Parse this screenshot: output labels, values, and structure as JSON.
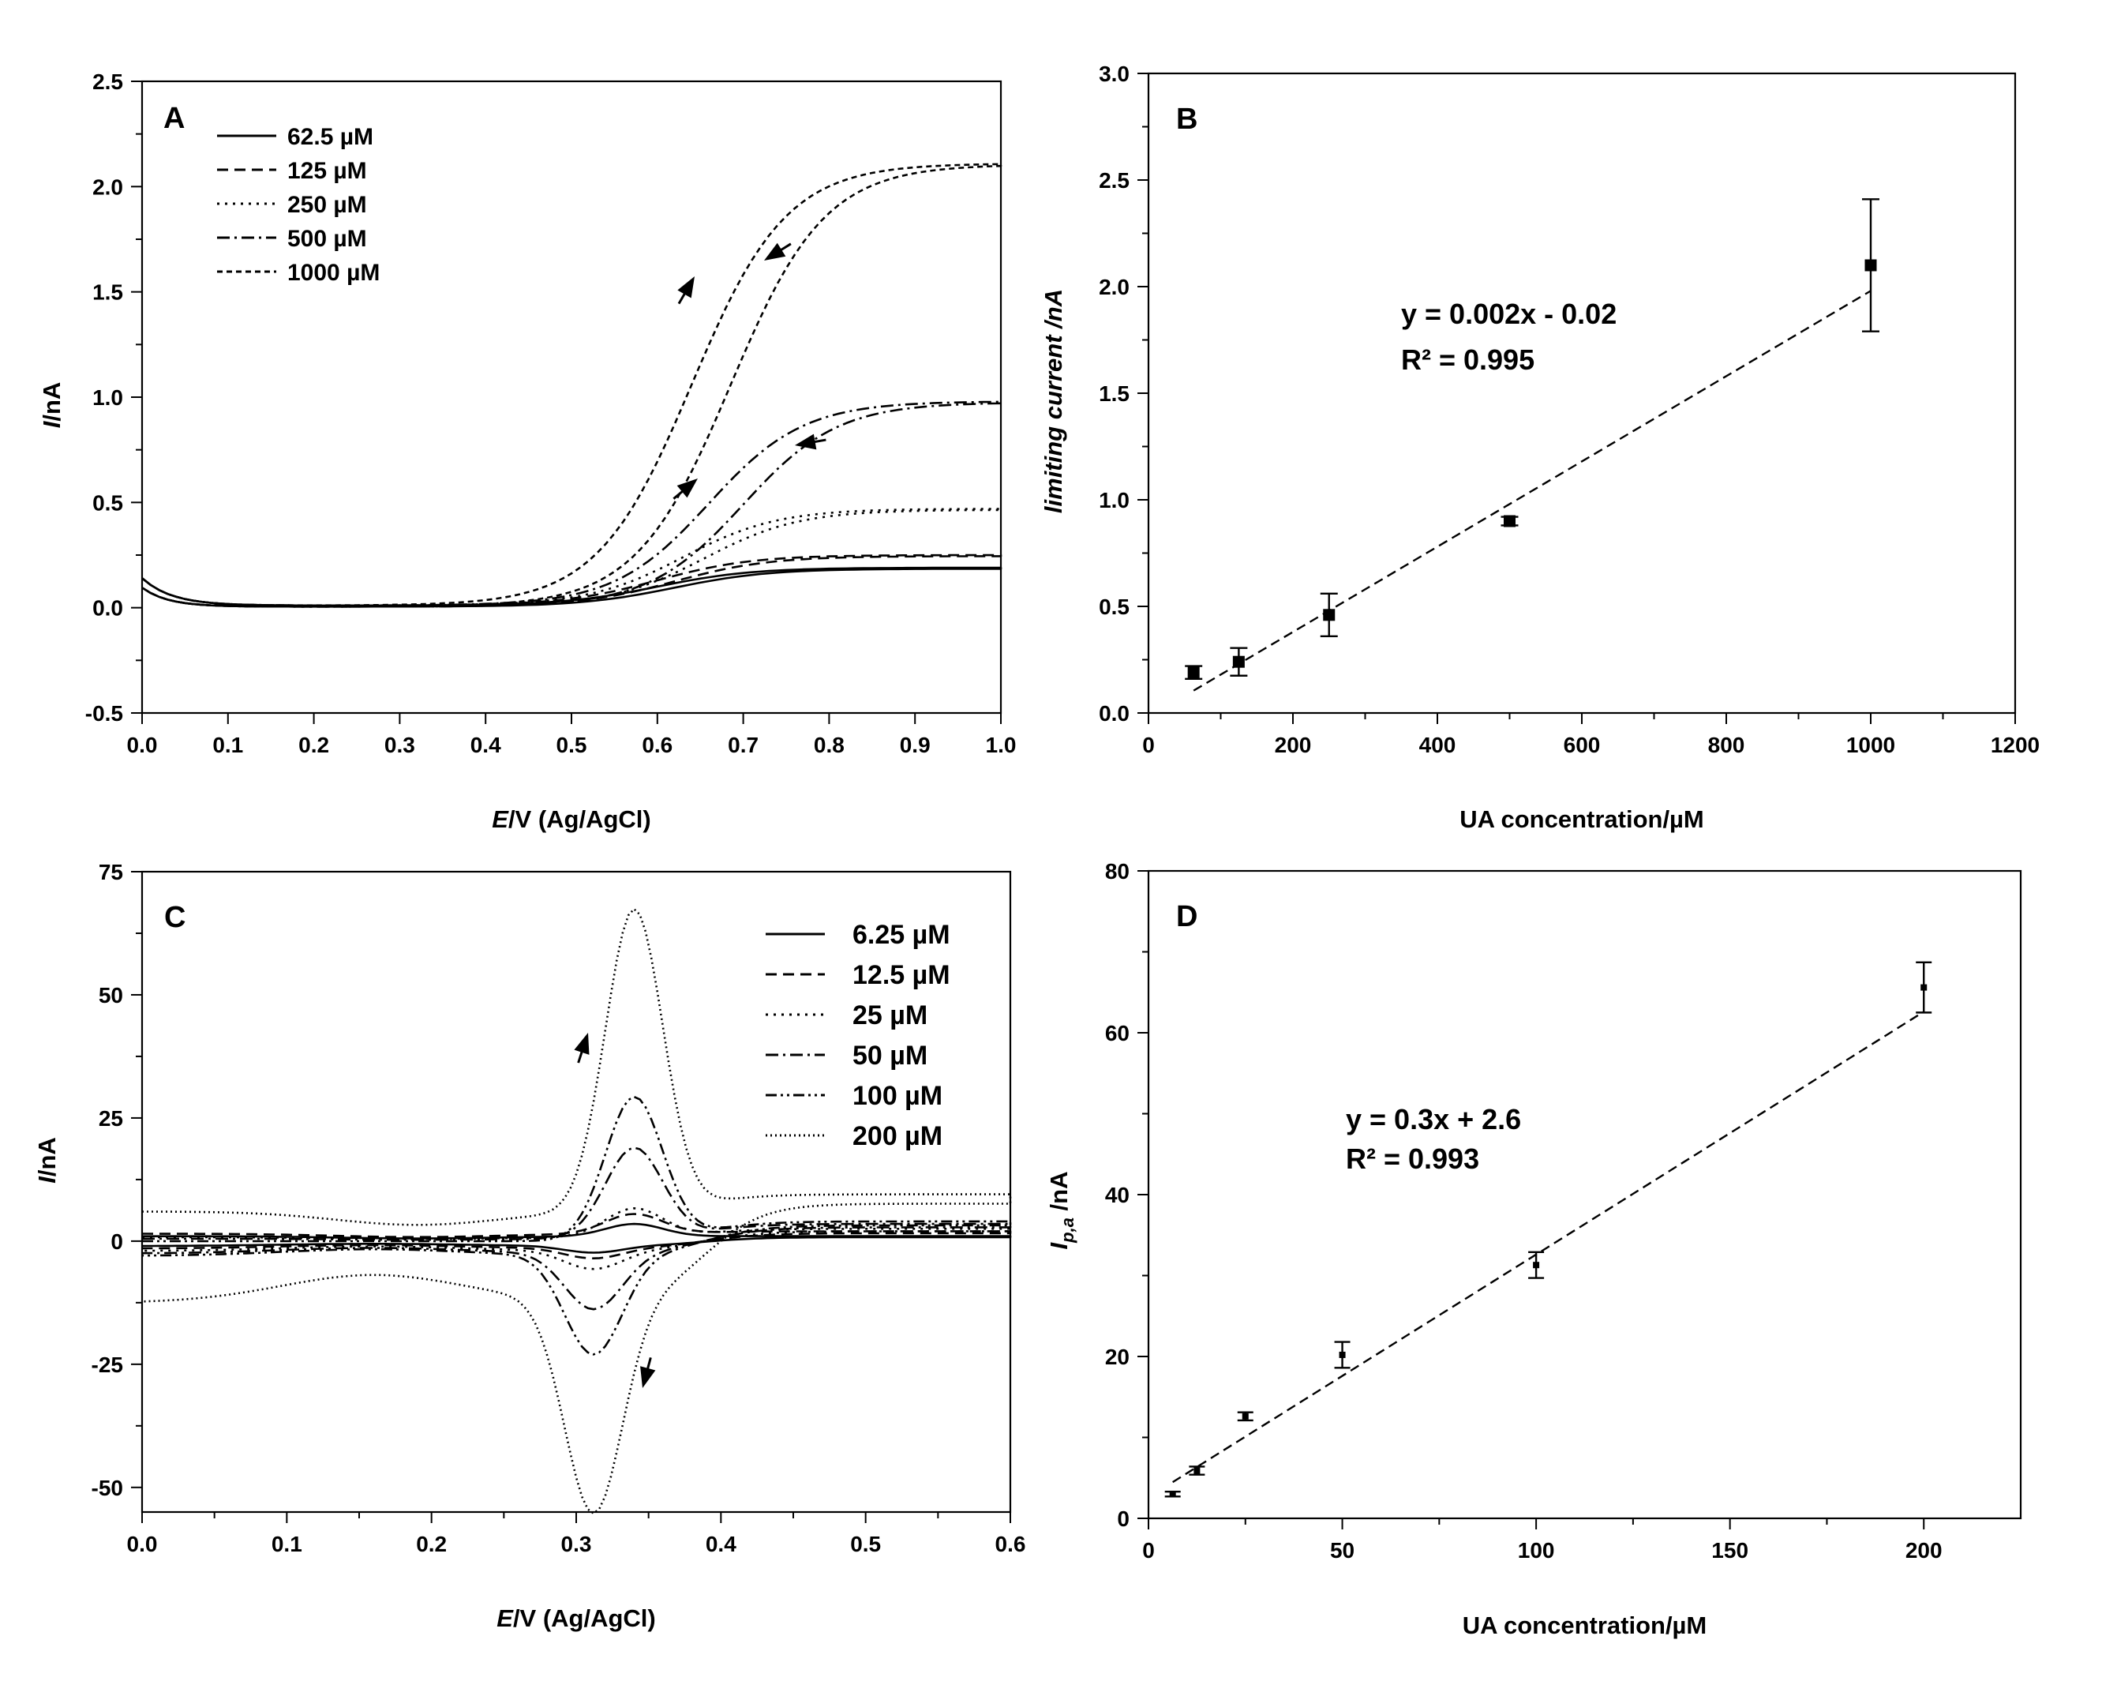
{
  "chart_data": [
    {
      "panel": "A",
      "type": "line",
      "xlabel_italic": "E",
      "xlabel_rest": "/V (Ag/AgCl)",
      "ylabel_italic": "I",
      "ylabel_rest": "/nA",
      "xlim": [
        0.0,
        1.0
      ],
      "ylim": [
        -0.5,
        2.5
      ],
      "xticks": [
        "0.0",
        "0.1",
        "0.2",
        "0.3",
        "0.4",
        "0.5",
        "0.6",
        "0.7",
        "0.8",
        "0.9",
        "1.0"
      ],
      "yticks": [
        "-0.5",
        "0.0",
        "0.5",
        "1.0",
        "1.5",
        "2.0",
        "2.5"
      ],
      "legend": [
        "62.5 µM",
        "125 µM",
        "250 µM",
        "500 µM",
        "1000 µM"
      ],
      "series": [
        {
          "name": "62.5 µM",
          "dash": "solid",
          "limiting": 0.18,
          "mid": 0.6,
          "lag": 0.02
        },
        {
          "name": "125 µM",
          "dash": "dash",
          "limiting": 0.24,
          "mid": 0.6,
          "lag": 0.02
        },
        {
          "name": "250 µM",
          "dash": "dot",
          "limiting": 0.46,
          "mid": 0.63,
          "lag": 0.025
        },
        {
          "name": "500 µM",
          "dash": "dashdot",
          "limiting": 0.97,
          "mid": 0.66,
          "lag": 0.04
        },
        {
          "name": "1000 µM",
          "dash": "shortdash",
          "limiting": 2.1,
          "mid": 0.64,
          "lag": 0.045
        }
      ]
    },
    {
      "panel": "B",
      "type": "scatter",
      "xlabel": "UA concentration/µM",
      "ylabel": "limiting current /nA",
      "xlim": [
        0,
        1200
      ],
      "ylim": [
        0.0,
        3.0
      ],
      "xticks": [
        "0",
        "200",
        "400",
        "600",
        "800",
        "1000",
        "1200"
      ],
      "yticks": [
        "0.0",
        "0.5",
        "1.0",
        "1.5",
        "2.0",
        "2.5",
        "3.0"
      ],
      "x": [
        62.5,
        125,
        250,
        500,
        1000
      ],
      "y": [
        0.19,
        0.24,
        0.46,
        0.9,
        2.1
      ],
      "error": [
        0.03,
        0.065,
        0.1,
        0.02,
        0.31
      ],
      "fit": {
        "slope": 0.002,
        "intercept": -0.02,
        "x_range": [
          62.5,
          1000
        ]
      },
      "equation": "y = 0.002x - 0.02",
      "r_squared": "R² = 0.995"
    },
    {
      "panel": "C",
      "type": "line",
      "xlabel_italic": "E",
      "xlabel_rest": "/V (Ag/AgCl)",
      "ylabel_italic": "I",
      "ylabel_rest": "/nA",
      "xlim": [
        0.0,
        0.6
      ],
      "ylim": [
        -55,
        75
      ],
      "xticks": [
        "0.0",
        "0.1",
        "0.2",
        "0.3",
        "0.4",
        "0.5",
        "0.6"
      ],
      "yticks": [
        "-50",
        "-25",
        "0",
        "25",
        "50",
        "75"
      ],
      "legend": [
        "6.25 µM",
        "12.5 µM",
        "25 µM",
        "50 µM",
        "100 µM",
        "200 µM"
      ],
      "series": [
        {
          "name": "6.25 µM",
          "dash": "solid",
          "peak_a": 3,
          "peak_c": -2,
          "start_fwd": 1,
          "start_rev": -1,
          "end": 1
        },
        {
          "name": "12.5 µM",
          "dash": "dash",
          "peak_a": 5,
          "peak_c": -3,
          "start_fwd": 1.5,
          "start_rev": -1.5,
          "end": 2
        },
        {
          "name": "25 µM",
          "dash": "dot",
          "peak_a": 7,
          "peak_c": -5,
          "start_fwd": 0.8,
          "start_rev": -2,
          "end": 2.5
        },
        {
          "name": "50 µM",
          "dash": "dashdot",
          "peak_a": 20,
          "peak_c": -13,
          "start_fwd": 0.5,
          "start_rev": -2.5,
          "end": 3.5
        },
        {
          "name": "100 µM",
          "dash": "dashdotdot",
          "peak_a": 31,
          "peak_c": -22,
          "start_fwd": 0,
          "start_rev": -3,
          "end": 4
        },
        {
          "name": "200 µM",
          "dash": "finedot",
          "peak_a": 66,
          "peak_c": -51,
          "start_fwd": 6,
          "start_rev": -12.5,
          "end": 9.5
        }
      ]
    },
    {
      "panel": "D",
      "type": "scatter",
      "xlabel": "UA concentration/µM",
      "ylabel_main": "I",
      "ylabel_sub": "p,a",
      "ylabel_rest": " /nA",
      "xlim": [
        0,
        225
      ],
      "ylim": [
        0,
        80
      ],
      "xticks": [
        "0",
        "50",
        "100",
        "150",
        "200"
      ],
      "yticks": [
        "0",
        "20",
        "40",
        "60",
        "80"
      ],
      "x": [
        6.25,
        12.5,
        25,
        50,
        100,
        200
      ],
      "y": [
        3.0,
        5.9,
        12.6,
        20.2,
        31.3,
        65.6
      ],
      "error": [
        0.3,
        0.5,
        0.5,
        1.6,
        1.6,
        3.1
      ],
      "fit": {
        "slope": 0.3,
        "intercept": 2.6,
        "x_range": [
          6.25,
          200
        ]
      },
      "equation": "y = 0.3x + 2.6",
      "r_squared": "R² = 0.993"
    }
  ]
}
